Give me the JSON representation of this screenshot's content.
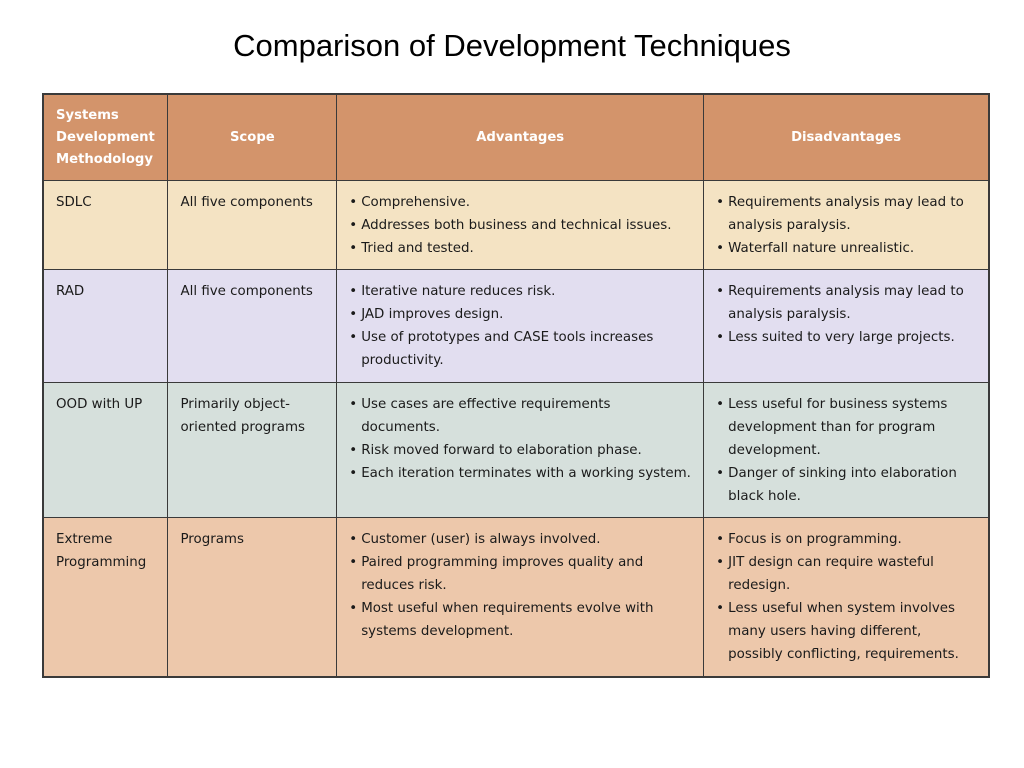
{
  "title": "Comparison of Development Techniques",
  "table": {
    "headers": {
      "methodology": "Systems Development Methodology",
      "scope": "Scope",
      "advantages": "Advantages",
      "disadvantages": "Disadvantages"
    },
    "rows": [
      {
        "methodology": "SDLC",
        "scope": "All five components",
        "advantages": [
          "Comprehensive.",
          "Addresses both business and technical issues.",
          "Tried and tested."
        ],
        "disadvantages": [
          "Requirements analysis may lead to analysis paralysis.",
          "Waterfall nature unrealistic."
        ]
      },
      {
        "methodology": "RAD",
        "scope": "All five components",
        "advantages": [
          "Iterative nature reduces risk.",
          "JAD improves design.",
          "Use of prototypes and CASE tools increases productivity."
        ],
        "disadvantages": [
          "Requirements analysis may lead to analysis paralysis.",
          "Less suited to very large projects."
        ]
      },
      {
        "methodology": "OOD with UP",
        "scope": "Primarily object-oriented programs",
        "advantages": [
          "Use cases are effective requirements documents.",
          "Risk moved forward  to elaboration phase.",
          "Each iteration terminates with a working system."
        ],
        "disadvantages": [
          "Less useful for business systems development than for program development.",
          "Danger of sinking into elaboration black hole."
        ]
      },
      {
        "methodology": "Extreme Programming",
        "scope": "Programs",
        "advantages": [
          "Customer (user) is always involved.",
          "Paired programming improves quality and reduces risk.",
          "Most useful when requirements evolve with systems development."
        ],
        "disadvantages": [
          "Focus is on programming.",
          "JIT design can require wasteful redesign.",
          "Less useful when system involves many users having different, possibly conflicting, requirements."
        ]
      }
    ]
  },
  "colors": {
    "header": "#d3946b",
    "sdlc_row": "#f4e3c3",
    "rad_row": "#e2def0",
    "ood_row": "#d6e0dc",
    "xp_row": "#edc8ab",
    "border": "#3a3a3a"
  }
}
